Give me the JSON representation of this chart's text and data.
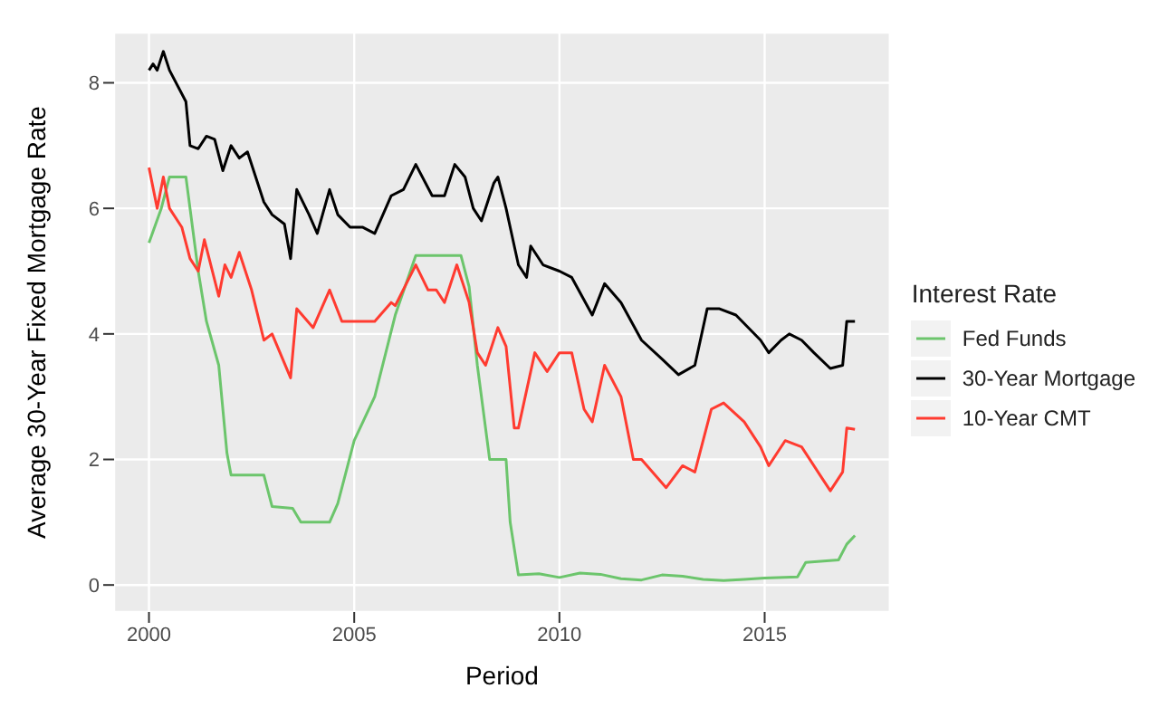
{
  "chart_data": {
    "type": "line",
    "xlabel": "Period",
    "ylabel": "Average 30-Year Fixed Mortgage Rate",
    "legend_title": "Interest Rate",
    "legend": "right",
    "grid": true,
    "marker": "none",
    "line_style": "solid",
    "xlim": [
      1999.15,
      2018.05
    ],
    "xticks": [
      2000,
      2005,
      2010,
      2015
    ],
    "ylim": [
      -0.43,
      8.8
    ],
    "yticks": [
      0,
      2,
      4,
      6,
      8
    ],
    "series": [
      {
        "name": "Fed Funds",
        "color": "#6cc56c",
        "x": [
          2000.0,
          2000.3,
          2000.5,
          2000.9,
          2001.0,
          2001.2,
          2001.4,
          2001.7,
          2001.9,
          2002.0,
          2002.8,
          2003.0,
          2003.5,
          2003.7,
          2004.4,
          2004.6,
          2005.0,
          2005.5,
          2006.0,
          2006.5,
          2007.6,
          2007.8,
          2008.0,
          2008.3,
          2008.7,
          2008.8,
          2009.0,
          2009.5,
          2010.0,
          2010.5,
          2011.0,
          2011.5,
          2012.0,
          2012.5,
          2013.0,
          2013.5,
          2014.0,
          2014.5,
          2015.0,
          2015.8,
          2016.0,
          2016.8,
          2017.0,
          2017.2
        ],
        "values": [
          5.45,
          6.0,
          6.5,
          6.5,
          6.0,
          5.0,
          4.2,
          3.5,
          2.1,
          1.75,
          1.75,
          1.25,
          1.22,
          1.0,
          1.0,
          1.3,
          2.3,
          3.0,
          4.3,
          5.25,
          5.25,
          4.75,
          3.5,
          2.0,
          2.0,
          1.0,
          0.16,
          0.18,
          0.12,
          0.19,
          0.17,
          0.1,
          0.08,
          0.16,
          0.14,
          0.09,
          0.07,
          0.09,
          0.11,
          0.13,
          0.36,
          0.4,
          0.65,
          0.79
        ]
      },
      {
        "name": "30-Year Mortgage",
        "color": "#000000",
        "x": [
          2000.0,
          2000.1,
          2000.2,
          2000.35,
          2000.5,
          2000.9,
          2001.0,
          2001.2,
          2001.4,
          2001.6,
          2001.8,
          2002.0,
          2002.2,
          2002.4,
          2002.8,
          2003.0,
          2003.3,
          2003.45,
          2003.6,
          2003.9,
          2004.1,
          2004.4,
          2004.6,
          2004.9,
          2005.2,
          2005.5,
          2005.9,
          2006.2,
          2006.5,
          2006.9,
          2007.2,
          2007.45,
          2007.7,
          2007.9,
          2008.1,
          2008.4,
          2008.5,
          2008.7,
          2008.9,
          2009.0,
          2009.2,
          2009.3,
          2009.6,
          2010.0,
          2010.3,
          2010.8,
          2011.1,
          2011.5,
          2012.0,
          2012.5,
          2012.9,
          2013.3,
          2013.6,
          2013.9,
          2014.3,
          2014.9,
          2015.1,
          2015.4,
          2015.6,
          2015.9,
          2016.2,
          2016.6,
          2016.9,
          2017.0,
          2017.2
        ],
        "values": [
          8.2,
          8.3,
          8.2,
          8.5,
          8.2,
          7.7,
          7.0,
          6.95,
          7.15,
          7.1,
          6.6,
          7.0,
          6.8,
          6.9,
          6.1,
          5.9,
          5.75,
          5.2,
          6.3,
          5.9,
          5.6,
          6.3,
          5.9,
          5.7,
          5.7,
          5.6,
          6.2,
          6.3,
          6.7,
          6.2,
          6.2,
          6.7,
          6.5,
          6.0,
          5.8,
          6.4,
          6.5,
          6.0,
          5.4,
          5.1,
          4.9,
          5.4,
          5.1,
          5.0,
          4.9,
          4.3,
          4.8,
          4.5,
          3.9,
          3.6,
          3.35,
          3.5,
          4.4,
          4.4,
          4.3,
          3.9,
          3.7,
          3.9,
          4.0,
          3.9,
          3.7,
          3.45,
          3.5,
          4.2,
          4.2
        ]
      },
      {
        "name": "10-Year CMT",
        "color": "#ff3b30",
        "x": [
          2000.0,
          2000.2,
          2000.35,
          2000.5,
          2000.8,
          2001.0,
          2001.2,
          2001.35,
          2001.7,
          2001.85,
          2002.0,
          2002.2,
          2002.5,
          2002.8,
          2003.0,
          2003.45,
          2003.6,
          2004.0,
          2004.4,
          2004.7,
          2005.0,
          2005.5,
          2005.9,
          2006.0,
          2006.5,
          2006.8,
          2007.0,
          2007.2,
          2007.5,
          2007.8,
          2008.0,
          2008.2,
          2008.5,
          2008.7,
          2008.9,
          2009.0,
          2009.4,
          2009.7,
          2010.0,
          2010.3,
          2010.6,
          2010.8,
          2011.1,
          2011.5,
          2011.8,
          2012.0,
          2012.6,
          2013.0,
          2013.3,
          2013.7,
          2014.0,
          2014.5,
          2014.9,
          2015.1,
          2015.5,
          2015.9,
          2016.4,
          2016.6,
          2016.9,
          2017.0,
          2017.2
        ],
        "values": [
          6.65,
          6.0,
          6.5,
          6.0,
          5.7,
          5.2,
          5.0,
          5.5,
          4.6,
          5.1,
          4.9,
          5.3,
          4.7,
          3.9,
          4.0,
          3.3,
          4.4,
          4.1,
          4.7,
          4.2,
          4.2,
          4.2,
          4.5,
          4.45,
          5.1,
          4.7,
          4.7,
          4.5,
          5.1,
          4.5,
          3.7,
          3.5,
          4.1,
          3.8,
          2.5,
          2.5,
          3.7,
          3.4,
          3.7,
          3.7,
          2.8,
          2.6,
          3.5,
          3.0,
          2.0,
          2.0,
          1.55,
          1.9,
          1.8,
          2.8,
          2.9,
          2.6,
          2.2,
          1.9,
          2.3,
          2.2,
          1.7,
          1.5,
          1.8,
          2.5,
          2.48
        ]
      }
    ]
  }
}
